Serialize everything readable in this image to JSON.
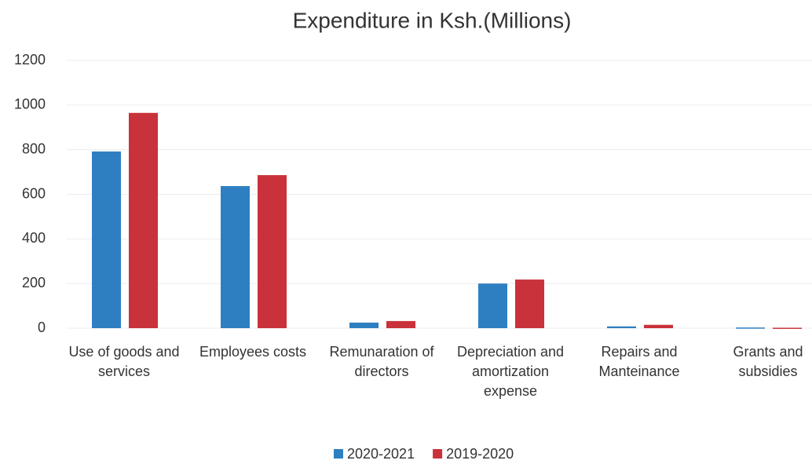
{
  "chart_data": {
    "type": "bar",
    "title": "Expenditure in Ksh.(Millions)",
    "categories": [
      "Use of goods and services",
      "Employees costs",
      "Remunaration of directors",
      "Depreciation and amortization expense",
      "Repairs and Manteinance",
      "Grants and subsidies"
    ],
    "series": [
      {
        "name": "2020-2021",
        "color": "#2e7fc1",
        "values": [
          792,
          637,
          25,
          200,
          8,
          3
        ]
      },
      {
        "name": "2019-2020",
        "color": "#c9323a",
        "values": [
          965,
          686,
          32,
          218,
          15,
          2
        ]
      }
    ],
    "ylim": [
      0,
      1200
    ],
    "yticks": [
      0,
      200,
      400,
      600,
      800,
      1000,
      1200
    ],
    "grid": true,
    "legend": "bottom"
  }
}
